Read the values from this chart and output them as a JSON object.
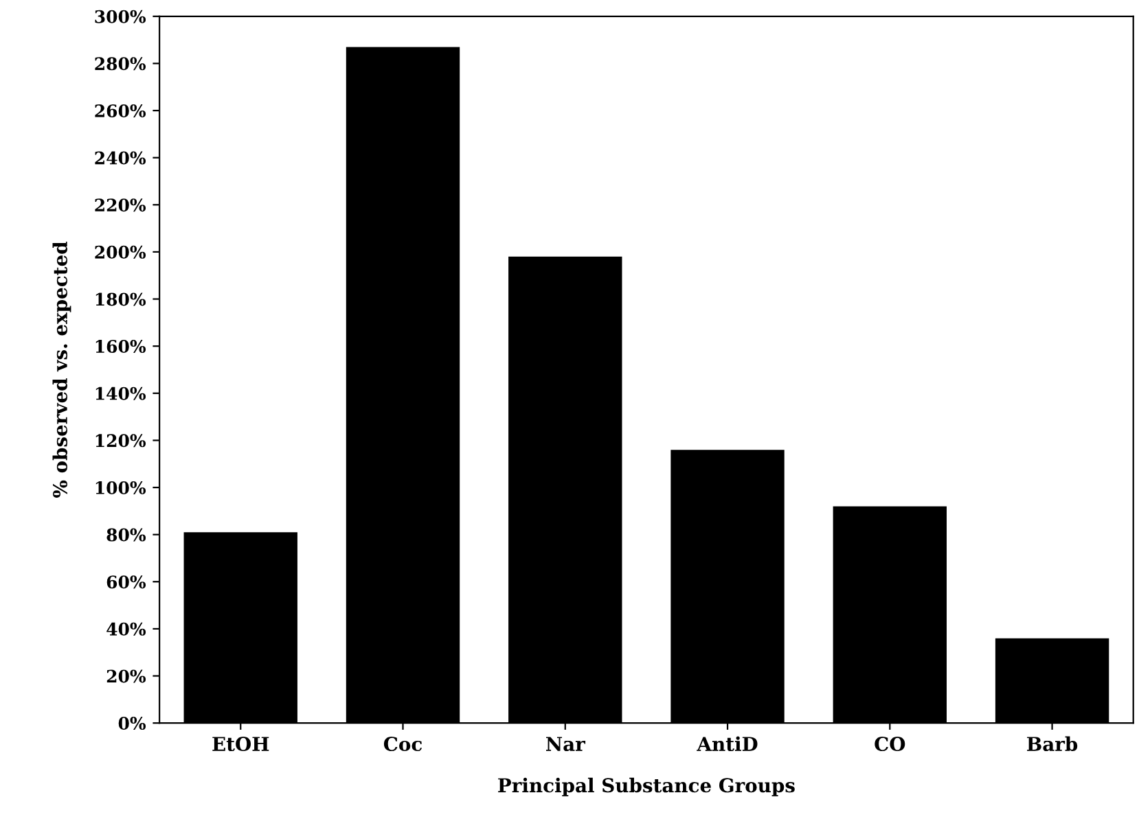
{
  "chart_data": {
    "type": "bar",
    "xlabel": "Principal Substance Groups",
    "ylabel": "% observed vs. expected",
    "categories": [
      "EtOH",
      "Coc",
      "Nar",
      "AntiD",
      "CO",
      "Barb"
    ],
    "values": [
      81,
      287,
      198,
      116,
      92,
      36
    ],
    "color": "#000000",
    "ylim": [
      0,
      300
    ],
    "yticks": [
      {
        "value": 0,
        "label": "0%"
      },
      {
        "value": 20,
        "label": "20%"
      },
      {
        "value": 40,
        "label": "40%"
      },
      {
        "value": 60,
        "label": "60%"
      },
      {
        "value": 80,
        "label": "80%"
      },
      {
        "value": 100,
        "label": "100%"
      },
      {
        "value": 120,
        "label": "120%"
      },
      {
        "value": 140,
        "label": "140%"
      },
      {
        "value": 160,
        "label": "160%"
      },
      {
        "value": 180,
        "label": "180%"
      },
      {
        "value": 200,
        "label": "200%"
      },
      {
        "value": 220,
        "label": "220%"
      },
      {
        "value": 240,
        "label": "240%"
      },
      {
        "value": 260,
        "label": "260%"
      },
      {
        "value": 280,
        "label": "280%"
      },
      {
        "value": 300,
        "label": "300%"
      }
    ],
    "grid": false
  }
}
